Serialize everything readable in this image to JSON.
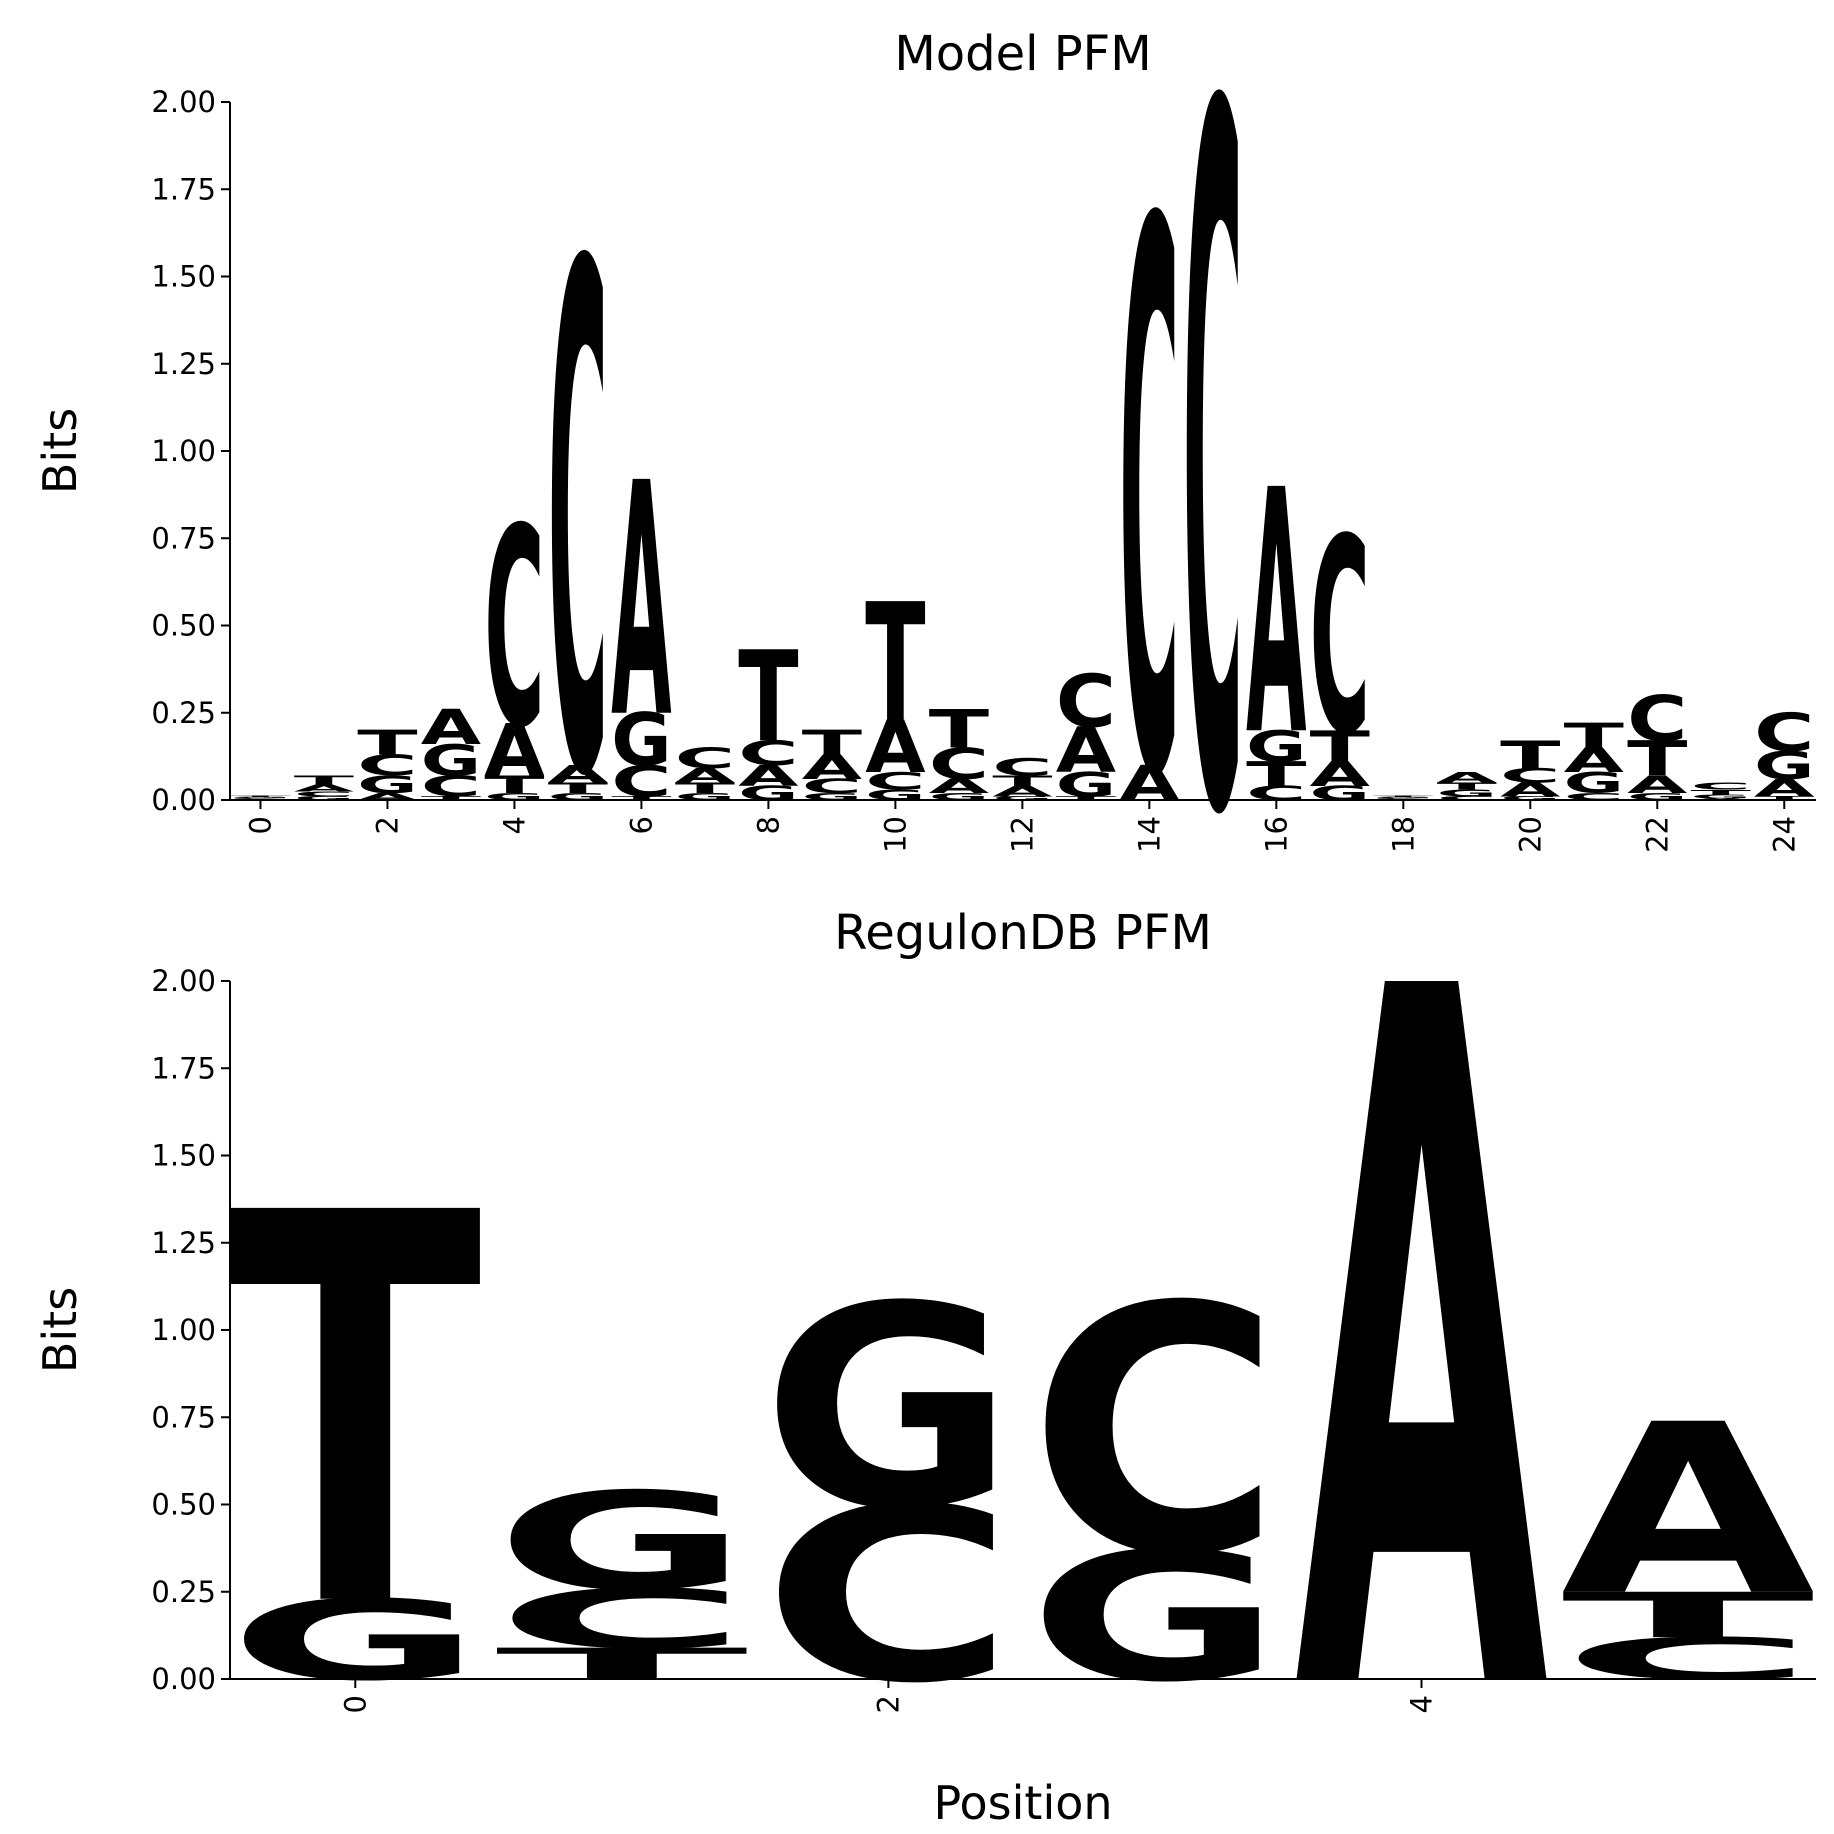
{
  "chart_data": [
    {
      "type": "logo",
      "title": "Model PFM",
      "ylabel": "Bits",
      "x": [
        0,
        1,
        2,
        3,
        4,
        5,
        6,
        7,
        8,
        9,
        10,
        11,
        12,
        13,
        14,
        15,
        16,
        17,
        18,
        19,
        20,
        21,
        22,
        23,
        24
      ],
      "series": [
        {
          "name": "A",
          "color": "#ff0000",
          "values": [
            0.003,
            0.02,
            0.02,
            0.1,
            0.15,
            0.05,
            0.67,
            0.04,
            0.06,
            0.07,
            0.15,
            0.04,
            0.03,
            0.13,
            0.1,
            0.0,
            0.7,
            0.07,
            0.003,
            0.03,
            0.04,
            0.07,
            0.05,
            0.005,
            0.05
          ]
        },
        {
          "name": "C",
          "color": "#0000ff",
          "values": [
            0.003,
            0.015,
            0.06,
            0.06,
            0.57,
            1.45,
            0.09,
            0.06,
            0.07,
            0.04,
            0.05,
            0.09,
            0.05,
            0.15,
            1.57,
            2.0,
            0.04,
            0.56,
            0.003,
            0.01,
            0.04,
            0.02,
            0.13,
            0.02,
            0.11
          ]
        },
        {
          "name": "G",
          "color": "#ffa500",
          "values": [
            0.003,
            0.01,
            0.05,
            0.09,
            0.02,
            0.02,
            0.15,
            0.02,
            0.04,
            0.02,
            0.03,
            0.02,
            0.01,
            0.07,
            0.0,
            0.0,
            0.09,
            0.04,
            0.003,
            0.02,
            0.01,
            0.06,
            0.02,
            0.01,
            0.08
          ]
        },
        {
          "name": "T",
          "color": "#008000",
          "values": [
            0.003,
            0.025,
            0.07,
            0.01,
            0.05,
            0.03,
            0.01,
            0.03,
            0.26,
            0.07,
            0.34,
            0.11,
            0.03,
            0.01,
            0.0,
            0.0,
            0.07,
            0.09,
            0.003,
            0.02,
            0.08,
            0.07,
            0.1,
            0.015,
            0.01
          ]
        }
      ],
      "xlim": [
        -0.48,
        24.5
      ],
      "ylim": [
        0,
        2
      ],
      "xticks": [
        0,
        2,
        4,
        6,
        8,
        10,
        12,
        14,
        16,
        18,
        20,
        22,
        24
      ],
      "yticks": [
        {
          "value": 0,
          "label": "0.00"
        },
        {
          "value": 0.25,
          "label": "0.25"
        },
        {
          "value": 0.5,
          "label": "0.50"
        },
        {
          "value": 0.75,
          "label": "0.75"
        },
        {
          "value": 1,
          "label": "1.00"
        },
        {
          "value": 1.25,
          "label": "1.25"
        },
        {
          "value": 1.5,
          "label": "1.50"
        },
        {
          "value": 1.75,
          "label": "1.75"
        },
        {
          "value": 2,
          "label": "2.00"
        }
      ]
    },
    {
      "type": "logo",
      "title": "RegulonDB PFM",
      "ylabel": "Bits",
      "xlabel": "Position",
      "x": [
        0,
        1,
        2,
        3,
        4,
        5
      ],
      "series": [
        {
          "name": "A",
          "color": "#ff0000",
          "values": [
            0,
            0,
            0,
            0,
            2.0,
            0.49
          ]
        },
        {
          "name": "C",
          "color": "#0000ff",
          "values": [
            0,
            0.17,
            0.5,
            0.71,
            0,
            0.12
          ]
        },
        {
          "name": "G",
          "color": "#ffa500",
          "values": [
            0.23,
            0.28,
            0.58,
            0.37,
            0,
            0
          ]
        },
        {
          "name": "T",
          "color": "#008000",
          "values": [
            1.12,
            0.09,
            0,
            0,
            0,
            0.13
          ]
        }
      ],
      "xlim": [
        -0.47,
        5.48
      ],
      "ylim": [
        0,
        2
      ],
      "xticks": [
        0,
        2,
        4
      ],
      "yticks": [
        {
          "value": 0,
          "label": "0.00"
        },
        {
          "value": 0.25,
          "label": "0.25"
        },
        {
          "value": 0.5,
          "label": "0.50"
        },
        {
          "value": 0.75,
          "label": "0.75"
        },
        {
          "value": 1,
          "label": "1.00"
        },
        {
          "value": 1.25,
          "label": "1.25"
        },
        {
          "value": 1.5,
          "label": "1.50"
        },
        {
          "value": 1.75,
          "label": "1.75"
        },
        {
          "value": 2,
          "label": "2.00"
        }
      ]
    }
  ]
}
